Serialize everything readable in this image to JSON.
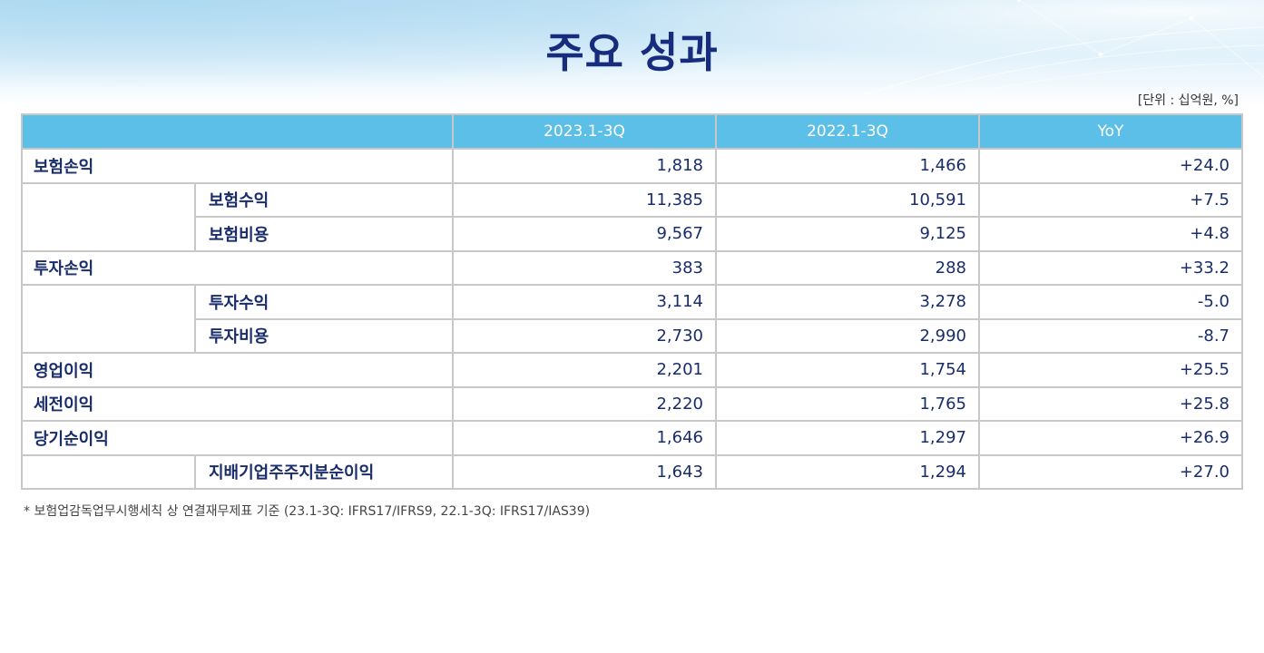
{
  "title": "주요 성과",
  "unit_note": "[단위 :  십억원, %]",
  "columns": [
    "2023.1-3Q",
    "2022.1-3Q",
    "YoY"
  ],
  "rows": [
    {
      "label": "보험손익",
      "cur": "1,818",
      "prev": "1,466",
      "yoy": "+24.0"
    },
    {
      "label": "보험수익",
      "cur": "11,385",
      "prev": "10,591",
      "yoy": "+7.5"
    },
    {
      "label": "보험비용",
      "cur": "9,567",
      "prev": "9,125",
      "yoy": "+4.8"
    },
    {
      "label": "투자손익",
      "cur": "383",
      "prev": "288",
      "yoy": "+33.2"
    },
    {
      "label": "투자수익",
      "cur": "3,114",
      "prev": "3,278",
      "yoy": "-5.0"
    },
    {
      "label": "투자비용",
      "cur": "2,730",
      "prev": "2,990",
      "yoy": "-8.7"
    },
    {
      "label": "영업이익",
      "cur": "2,201",
      "prev": "1,754",
      "yoy": "+25.5"
    },
    {
      "label": "세전이익",
      "cur": "2,220",
      "prev": "1,765",
      "yoy": "+25.8"
    },
    {
      "label": "당기순이익",
      "cur": "1,646",
      "prev": "1,297",
      "yoy": "+26.9"
    },
    {
      "label": "지배기업주주지분순이익",
      "cur": "1,643",
      "prev": "1,294",
      "yoy": "+27.0"
    }
  ],
  "footnote": "* 보험업감독업무시행세칙 상 연결재무제표 기준 (23.1-3Q: IFRS17/IFRS9, 22.1-3Q: IFRS17/IAS39)",
  "colors": {
    "title": "#172c7c",
    "header_bg": "#5bbfe8",
    "cell_text": "#1a2d6b",
    "grid": "#c8c8c8"
  }
}
